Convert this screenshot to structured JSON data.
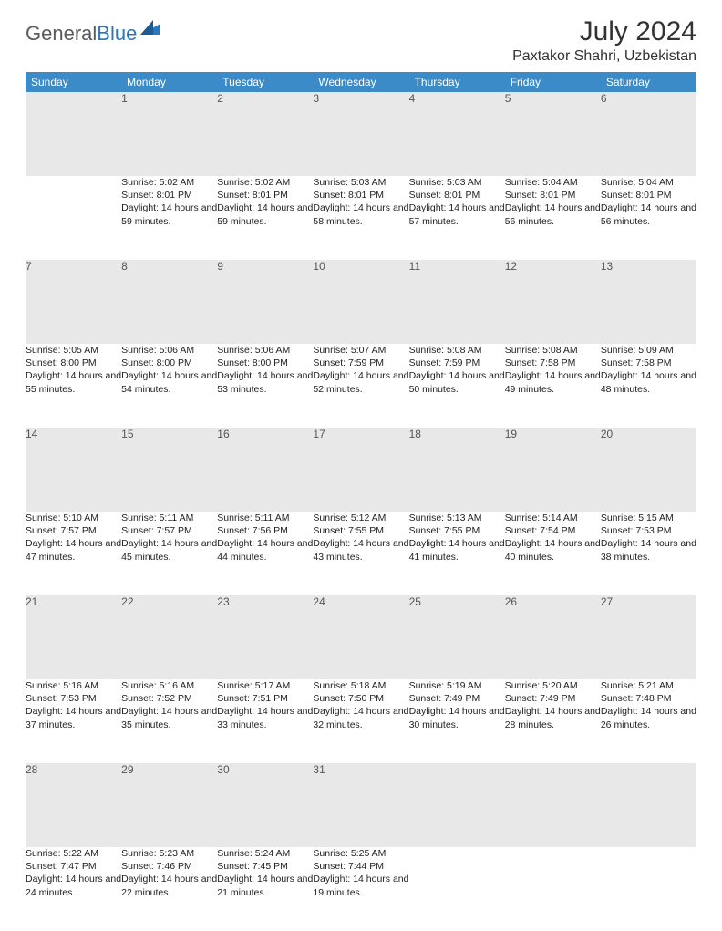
{
  "logo": {
    "part1": "General",
    "part2": "Blue"
  },
  "title": "July 2024",
  "location": "Paxtakor Shahri, Uzbekistan",
  "colors": {
    "header_bg": "#3b8bc9",
    "header_text": "#ffffff",
    "daynum_bg": "#e8e8e8",
    "rule": "#2a6fa8",
    "logo_gray": "#5a5a5a",
    "logo_blue": "#2a77bd"
  },
  "weekdays": [
    "Sunday",
    "Monday",
    "Tuesday",
    "Wednesday",
    "Thursday",
    "Friday",
    "Saturday"
  ],
  "weeks": [
    [
      null,
      {
        "n": "1",
        "sr": "Sunrise: 5:02 AM",
        "ss": "Sunset: 8:01 PM",
        "dl": "Daylight: 14 hours and 59 minutes."
      },
      {
        "n": "2",
        "sr": "Sunrise: 5:02 AM",
        "ss": "Sunset: 8:01 PM",
        "dl": "Daylight: 14 hours and 59 minutes."
      },
      {
        "n": "3",
        "sr": "Sunrise: 5:03 AM",
        "ss": "Sunset: 8:01 PM",
        "dl": "Daylight: 14 hours and 58 minutes."
      },
      {
        "n": "4",
        "sr": "Sunrise: 5:03 AM",
        "ss": "Sunset: 8:01 PM",
        "dl": "Daylight: 14 hours and 57 minutes."
      },
      {
        "n": "5",
        "sr": "Sunrise: 5:04 AM",
        "ss": "Sunset: 8:01 PM",
        "dl": "Daylight: 14 hours and 56 minutes."
      },
      {
        "n": "6",
        "sr": "Sunrise: 5:04 AM",
        "ss": "Sunset: 8:01 PM",
        "dl": "Daylight: 14 hours and 56 minutes."
      }
    ],
    [
      {
        "n": "7",
        "sr": "Sunrise: 5:05 AM",
        "ss": "Sunset: 8:00 PM",
        "dl": "Daylight: 14 hours and 55 minutes."
      },
      {
        "n": "8",
        "sr": "Sunrise: 5:06 AM",
        "ss": "Sunset: 8:00 PM",
        "dl": "Daylight: 14 hours and 54 minutes."
      },
      {
        "n": "9",
        "sr": "Sunrise: 5:06 AM",
        "ss": "Sunset: 8:00 PM",
        "dl": "Daylight: 14 hours and 53 minutes."
      },
      {
        "n": "10",
        "sr": "Sunrise: 5:07 AM",
        "ss": "Sunset: 7:59 PM",
        "dl": "Daylight: 14 hours and 52 minutes."
      },
      {
        "n": "11",
        "sr": "Sunrise: 5:08 AM",
        "ss": "Sunset: 7:59 PM",
        "dl": "Daylight: 14 hours and 50 minutes."
      },
      {
        "n": "12",
        "sr": "Sunrise: 5:08 AM",
        "ss": "Sunset: 7:58 PM",
        "dl": "Daylight: 14 hours and 49 minutes."
      },
      {
        "n": "13",
        "sr": "Sunrise: 5:09 AM",
        "ss": "Sunset: 7:58 PM",
        "dl": "Daylight: 14 hours and 48 minutes."
      }
    ],
    [
      {
        "n": "14",
        "sr": "Sunrise: 5:10 AM",
        "ss": "Sunset: 7:57 PM",
        "dl": "Daylight: 14 hours and 47 minutes."
      },
      {
        "n": "15",
        "sr": "Sunrise: 5:11 AM",
        "ss": "Sunset: 7:57 PM",
        "dl": "Daylight: 14 hours and 45 minutes."
      },
      {
        "n": "16",
        "sr": "Sunrise: 5:11 AM",
        "ss": "Sunset: 7:56 PM",
        "dl": "Daylight: 14 hours and 44 minutes."
      },
      {
        "n": "17",
        "sr": "Sunrise: 5:12 AM",
        "ss": "Sunset: 7:55 PM",
        "dl": "Daylight: 14 hours and 43 minutes."
      },
      {
        "n": "18",
        "sr": "Sunrise: 5:13 AM",
        "ss": "Sunset: 7:55 PM",
        "dl": "Daylight: 14 hours and 41 minutes."
      },
      {
        "n": "19",
        "sr": "Sunrise: 5:14 AM",
        "ss": "Sunset: 7:54 PM",
        "dl": "Daylight: 14 hours and 40 minutes."
      },
      {
        "n": "20",
        "sr": "Sunrise: 5:15 AM",
        "ss": "Sunset: 7:53 PM",
        "dl": "Daylight: 14 hours and 38 minutes."
      }
    ],
    [
      {
        "n": "21",
        "sr": "Sunrise: 5:16 AM",
        "ss": "Sunset: 7:53 PM",
        "dl": "Daylight: 14 hours and 37 minutes."
      },
      {
        "n": "22",
        "sr": "Sunrise: 5:16 AM",
        "ss": "Sunset: 7:52 PM",
        "dl": "Daylight: 14 hours and 35 minutes."
      },
      {
        "n": "23",
        "sr": "Sunrise: 5:17 AM",
        "ss": "Sunset: 7:51 PM",
        "dl": "Daylight: 14 hours and 33 minutes."
      },
      {
        "n": "24",
        "sr": "Sunrise: 5:18 AM",
        "ss": "Sunset: 7:50 PM",
        "dl": "Daylight: 14 hours and 32 minutes."
      },
      {
        "n": "25",
        "sr": "Sunrise: 5:19 AM",
        "ss": "Sunset: 7:49 PM",
        "dl": "Daylight: 14 hours and 30 minutes."
      },
      {
        "n": "26",
        "sr": "Sunrise: 5:20 AM",
        "ss": "Sunset: 7:49 PM",
        "dl": "Daylight: 14 hours and 28 minutes."
      },
      {
        "n": "27",
        "sr": "Sunrise: 5:21 AM",
        "ss": "Sunset: 7:48 PM",
        "dl": "Daylight: 14 hours and 26 minutes."
      }
    ],
    [
      {
        "n": "28",
        "sr": "Sunrise: 5:22 AM",
        "ss": "Sunset: 7:47 PM",
        "dl": "Daylight: 14 hours and 24 minutes."
      },
      {
        "n": "29",
        "sr": "Sunrise: 5:23 AM",
        "ss": "Sunset: 7:46 PM",
        "dl": "Daylight: 14 hours and 22 minutes."
      },
      {
        "n": "30",
        "sr": "Sunrise: 5:24 AM",
        "ss": "Sunset: 7:45 PM",
        "dl": "Daylight: 14 hours and 21 minutes."
      },
      {
        "n": "31",
        "sr": "Sunrise: 5:25 AM",
        "ss": "Sunset: 7:44 PM",
        "dl": "Daylight: 14 hours and 19 minutes."
      },
      null,
      null,
      null
    ]
  ]
}
